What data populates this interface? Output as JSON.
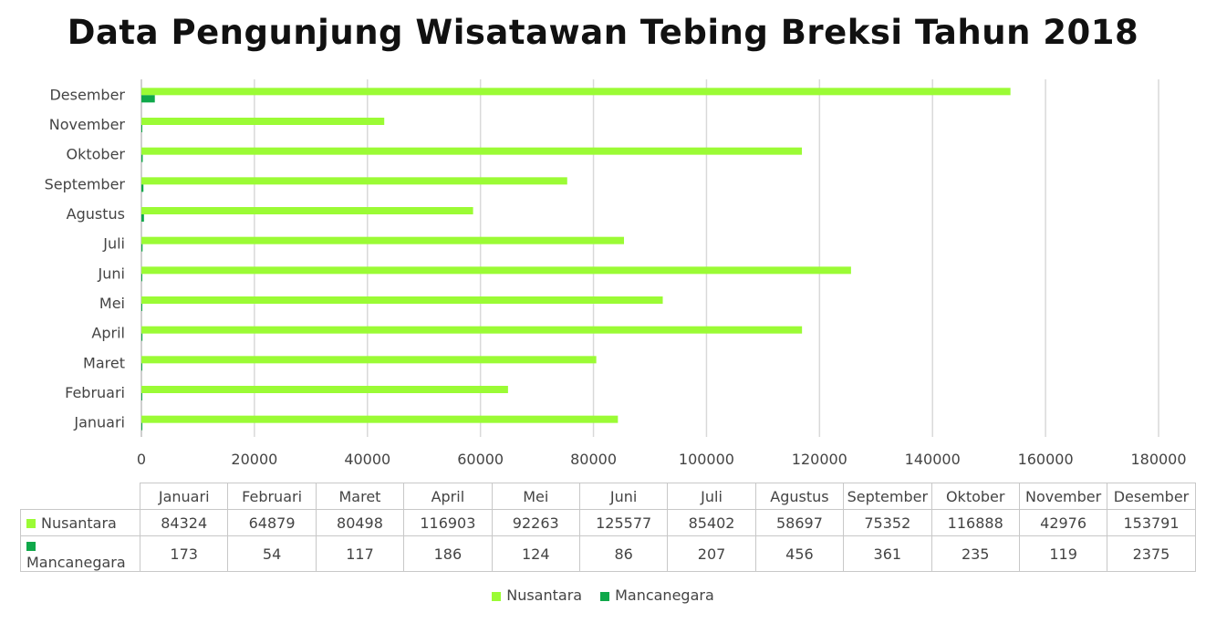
{
  "title": "Data Pengunjung Wisatawan Tebing Breksi Tahun 2018",
  "chart_data": {
    "type": "bar",
    "orientation": "horizontal",
    "title": "Data Pengunjung Wisatawan Tebing Breksi Tahun 2018",
    "categories": [
      "Januari",
      "Februari",
      "Maret",
      "April",
      "Mei",
      "Juni",
      "Juli",
      "Agustus",
      "September",
      "Oktober",
      "November",
      "Desember"
    ],
    "series": [
      {
        "name": "Nusantara",
        "color": "#9bfb35",
        "values": [
          84324,
          64879,
          80498,
          116903,
          92263,
          125577,
          85402,
          58697,
          75352,
          116888,
          42976,
          153791
        ]
      },
      {
        "name": "Mancanegara",
        "color": "#0fa84a",
        "values": [
          173,
          54,
          117,
          186,
          124,
          86,
          207,
          456,
          361,
          235,
          119,
          2375
        ]
      }
    ],
    "xlim": [
      0,
      180000
    ],
    "xticks": [
      "0",
      "20000",
      "40000",
      "60000",
      "80000",
      "100000",
      "120000",
      "140000",
      "160000",
      "180000"
    ],
    "grid": true,
    "legend_position": "bottom",
    "data_table": true
  }
}
